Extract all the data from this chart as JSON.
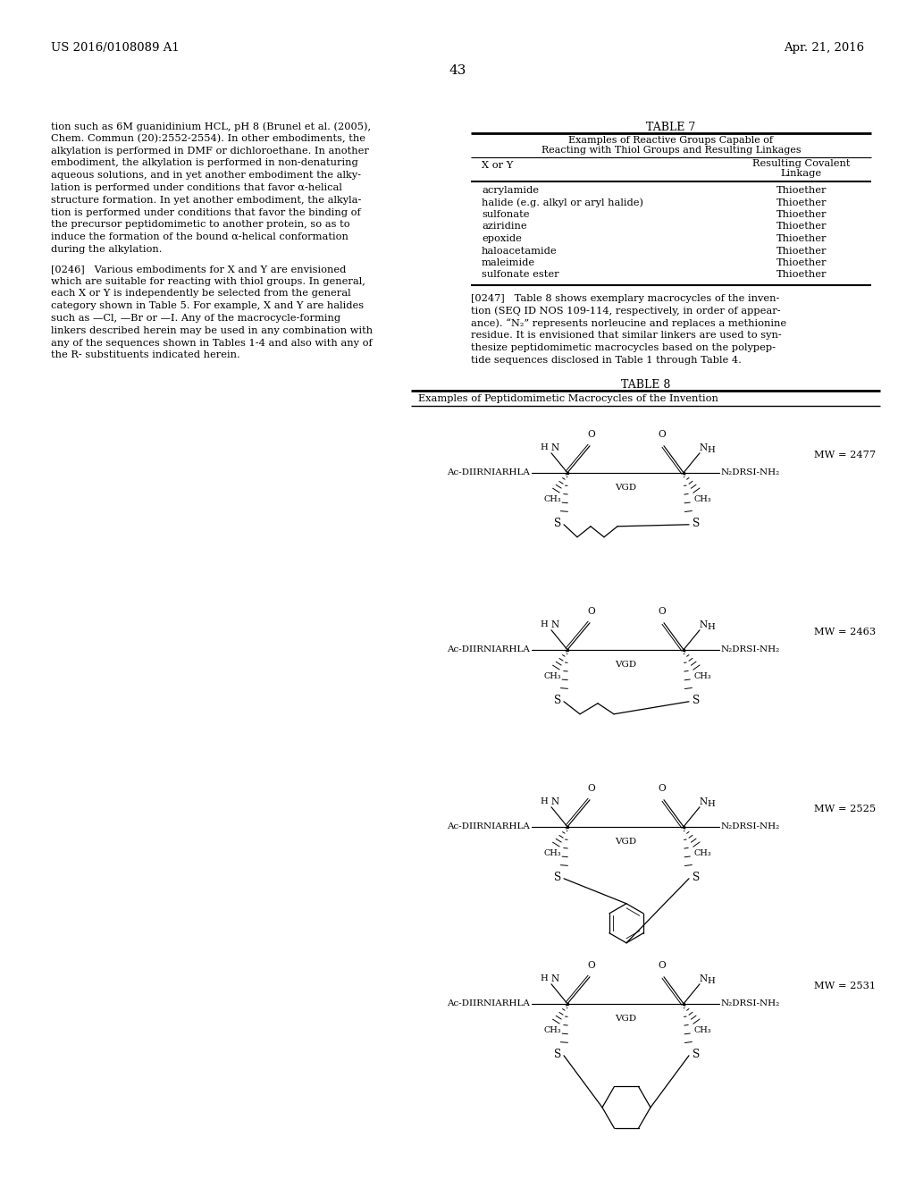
{
  "page_number": "43",
  "patent_number": "US 2016/0108089 A1",
  "patent_date": "Apr. 21, 2016",
  "background_color": "#ffffff",
  "left_col_lines": [
    "tion such as 6M guanidinium HCL, pH 8 (Brunel et al. (2005),",
    "Chem. Commun (20):2552-2554). In other embodiments, the",
    "alkylation is performed in DMF or dichloroethane. In another",
    "embodiment, the alkylation is performed in non-denaturing",
    "aqueous solutions, and in yet another embodiment the alky-",
    "lation is performed under conditions that favor α-helical",
    "structure formation. In yet another embodiment, the alkyla-",
    "tion is performed under conditions that favor the binding of",
    "the precursor peptidomimetic to another protein, so as to",
    "induce the formation of the bound α-helical conformation",
    "during the alkylation."
  ],
  "para246_lines": [
    "[0246]   Various embodiments for X and Y are envisioned",
    "which are suitable for reacting with thiol groups. In general,",
    "each X or Y is independently be selected from the general",
    "category shown in Table 5. For example, X and Y are halides",
    "such as —Cl, —Br or —I. Any of the macrocycle-forming",
    "linkers described herein may be used in any combination with",
    "any of the sequences shown in Tables 1-4 and also with any of",
    "the R- substituents indicated herein."
  ],
  "table7_title": "TABLE 7",
  "table7_sub1": "Examples of Reactive Groups Capable of",
  "table7_sub2": "Reacting with Thiol Groups and Resulting Linkages",
  "table7_col1": "X or Y",
  "table7_col2a": "Resulting Covalent",
  "table7_col2b": "Linkage",
  "table7_rows": [
    [
      "acrylamide",
      "Thioether"
    ],
    [
      "halide (e.g. alkyl or aryl halide)",
      "Thioether"
    ],
    [
      "sulfonate",
      "Thioether"
    ],
    [
      "aziridine",
      "Thioether"
    ],
    [
      "epoxide",
      "Thioether"
    ],
    [
      "haloacetamide",
      "Thioether"
    ],
    [
      "maleimide",
      "Thioether"
    ],
    [
      "sulfonate ester",
      "Thioether"
    ]
  ],
  "para247_lines": [
    "[0247]   Table 8 shows exemplary macrocycles of the inven-",
    "tion (SEQ ID NOS 109-114, respectively, in order of appear-",
    "ance). “N₂” represents norleucine and replaces a methionine",
    "residue. It is envisioned that similar linkers are used to syn-",
    "thesize peptidomimetic macrocycles based on the polypep-",
    "tide sequences disclosed in Table 1 through Table 4."
  ],
  "table8_title": "TABLE 8",
  "table8_sub": "Examples of Peptidomimetic Macrocycles of the Invention",
  "mol_left_label": "Ac-DIIRNIARHLA",
  "mol_center_label": "VGD",
  "mol_right_label": "N₂DRSI-NH₂",
  "mol_mw": [
    "MW = 2477",
    "MW = 2463",
    "MW = 2525",
    "MW = 2531"
  ],
  "mol_linker": [
    "butyl",
    "propyl",
    "xylyl",
    "cyclohexyl"
  ]
}
